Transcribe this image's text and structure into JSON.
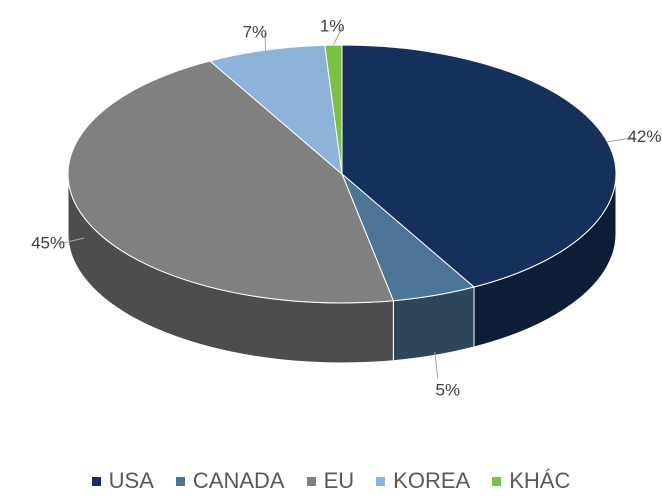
{
  "chart_data": {
    "type": "pie",
    "categories": [
      "USA",
      "CANADA",
      "EU",
      "KOREA",
      "KHÁC"
    ],
    "values": [
      42,
      5,
      45,
      7,
      1
    ],
    "value_labels": [
      "42%",
      "5%",
      "45%",
      "7%",
      "1%"
    ],
    "colors": [
      "#15305a",
      "#4d7596",
      "#808080",
      "#8db4d8",
      "#7cc143"
    ],
    "legend": "bottom"
  }
}
